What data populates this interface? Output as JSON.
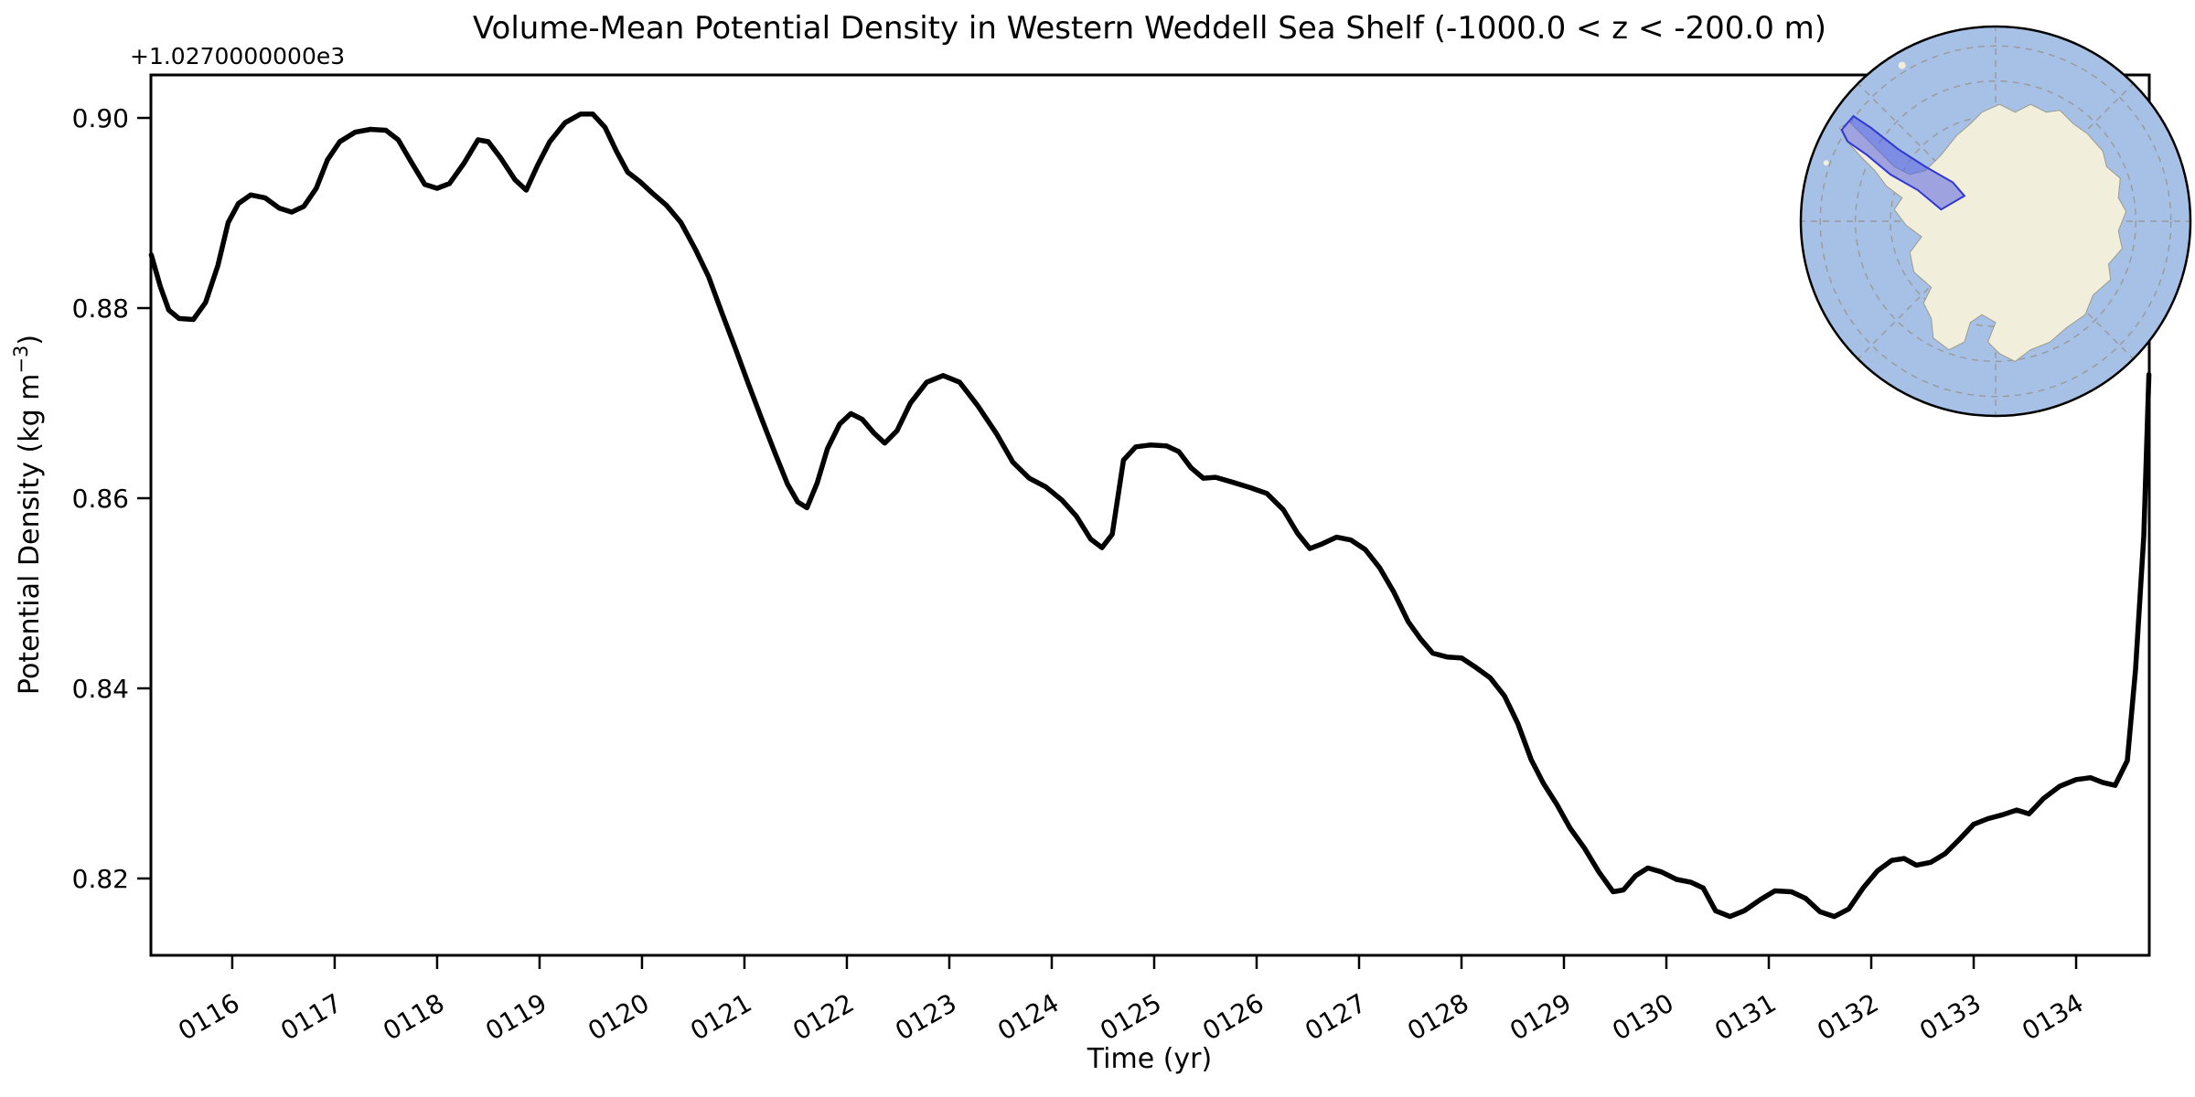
{
  "chart_data": {
    "type": "line",
    "title": "Volume-Mean Potential Density in Western Weddell Sea Shelf (-1000.0 < z < -200.0 m)",
    "xlabel": "Time (yr)",
    "ylabel_prefix": "Potential Density (kg m",
    "ylabel_sup": "−3",
    "ylabel_suffix": ")",
    "offset_text": "+1.0270000000e3",
    "x_ticks": [
      {
        "value": 116,
        "label": "0116"
      },
      {
        "value": 117,
        "label": "0117"
      },
      {
        "value": 118,
        "label": "0118"
      },
      {
        "value": 119,
        "label": "0119"
      },
      {
        "value": 120,
        "label": "0120"
      },
      {
        "value": 121,
        "label": "0121"
      },
      {
        "value": 122,
        "label": "0122"
      },
      {
        "value": 123,
        "label": "0123"
      },
      {
        "value": 124,
        "label": "0124"
      },
      {
        "value": 125,
        "label": "0125"
      },
      {
        "value": 126,
        "label": "0126"
      },
      {
        "value": 127,
        "label": "0127"
      },
      {
        "value": 128,
        "label": "0128"
      },
      {
        "value": 129,
        "label": "0129"
      },
      {
        "value": 130,
        "label": "0130"
      },
      {
        "value": 131,
        "label": "0131"
      },
      {
        "value": 132,
        "label": "0132"
      },
      {
        "value": 133,
        "label": "0133"
      },
      {
        "value": 134,
        "label": "0134"
      }
    ],
    "y_ticks": [
      {
        "value": 0.82,
        "label": "0.82"
      },
      {
        "value": 0.84,
        "label": "0.84"
      },
      {
        "value": 0.86,
        "label": "0.86"
      },
      {
        "value": 0.88,
        "label": "0.88"
      },
      {
        "value": 0.9,
        "label": "0.90"
      }
    ],
    "xlim": [
      115.206,
      134.714
    ],
    "ylim": [
      0.81192,
      0.90452
    ],
    "y_offset": 1027.0,
    "grid": false,
    "line_color": "#000000",
    "line_width": 5.5,
    "series": [
      {
        "name": "volume_mean_potential_density",
        "points": [
          [
            115.21,
            0.8856
          ],
          [
            115.3,
            0.8822
          ],
          [
            115.38,
            0.8798
          ],
          [
            115.48,
            0.8789
          ],
          [
            115.62,
            0.8788
          ],
          [
            115.74,
            0.8806
          ],
          [
            115.86,
            0.8845
          ],
          [
            115.96,
            0.889
          ],
          [
            116.06,
            0.891
          ],
          [
            116.18,
            0.8919
          ],
          [
            116.32,
            0.8916
          ],
          [
            116.46,
            0.8905
          ],
          [
            116.58,
            0.8901
          ],
          [
            116.7,
            0.8907
          ],
          [
            116.82,
            0.8926
          ],
          [
            116.93,
            0.8956
          ],
          [
            117.05,
            0.8975
          ],
          [
            117.2,
            0.8985
          ],
          [
            117.35,
            0.8988
          ],
          [
            117.5,
            0.8987
          ],
          [
            117.62,
            0.8977
          ],
          [
            117.74,
            0.8955
          ],
          [
            117.88,
            0.893
          ],
          [
            118.0,
            0.8926
          ],
          [
            118.12,
            0.8931
          ],
          [
            118.26,
            0.8952
          ],
          [
            118.4,
            0.8977
          ],
          [
            118.5,
            0.8975
          ],
          [
            118.62,
            0.8958
          ],
          [
            118.76,
            0.8935
          ],
          [
            118.87,
            0.8924
          ],
          [
            118.98,
            0.895
          ],
          [
            119.1,
            0.8975
          ],
          [
            119.25,
            0.8995
          ],
          [
            119.4,
            0.9004
          ],
          [
            119.52,
            0.9004
          ],
          [
            119.64,
            0.899
          ],
          [
            119.75,
            0.8965
          ],
          [
            119.86,
            0.8943
          ],
          [
            119.98,
            0.8933
          ],
          [
            120.1,
            0.8921
          ],
          [
            120.24,
            0.8908
          ],
          [
            120.38,
            0.889
          ],
          [
            120.52,
            0.8862
          ],
          [
            120.65,
            0.8833
          ],
          [
            120.78,
            0.8795
          ],
          [
            120.91,
            0.8758
          ],
          [
            121.04,
            0.872
          ],
          [
            121.17,
            0.8683
          ],
          [
            121.3,
            0.8647
          ],
          [
            121.42,
            0.8615
          ],
          [
            121.52,
            0.8596
          ],
          [
            121.61,
            0.859
          ],
          [
            121.71,
            0.8616
          ],
          [
            121.81,
            0.8652
          ],
          [
            121.93,
            0.8678
          ],
          [
            122.04,
            0.8689
          ],
          [
            122.15,
            0.8683
          ],
          [
            122.26,
            0.8669
          ],
          [
            122.37,
            0.8658
          ],
          [
            122.49,
            0.8671
          ],
          [
            122.62,
            0.87
          ],
          [
            122.78,
            0.8722
          ],
          [
            122.94,
            0.8729
          ],
          [
            123.1,
            0.8722
          ],
          [
            123.28,
            0.8697
          ],
          [
            123.46,
            0.8668
          ],
          [
            123.62,
            0.8638
          ],
          [
            123.78,
            0.8621
          ],
          [
            123.94,
            0.8612
          ],
          [
            124.1,
            0.8598
          ],
          [
            124.24,
            0.8581
          ],
          [
            124.38,
            0.8557
          ],
          [
            124.49,
            0.8548
          ],
          [
            124.59,
            0.8562
          ],
          [
            124.7,
            0.864
          ],
          [
            124.82,
            0.8654
          ],
          [
            124.96,
            0.8656
          ],
          [
            125.12,
            0.8655
          ],
          [
            125.24,
            0.8649
          ],
          [
            125.36,
            0.8632
          ],
          [
            125.48,
            0.8621
          ],
          [
            125.6,
            0.8622
          ],
          [
            125.76,
            0.8617
          ],
          [
            125.94,
            0.8611
          ],
          [
            126.1,
            0.8605
          ],
          [
            126.26,
            0.8588
          ],
          [
            126.4,
            0.8563
          ],
          [
            126.52,
            0.8547
          ],
          [
            126.64,
            0.8552
          ],
          [
            126.78,
            0.8559
          ],
          [
            126.92,
            0.8556
          ],
          [
            127.06,
            0.8546
          ],
          [
            127.2,
            0.8527
          ],
          [
            127.34,
            0.8501
          ],
          [
            127.48,
            0.847
          ],
          [
            127.6,
            0.8452
          ],
          [
            127.72,
            0.8437
          ],
          [
            127.86,
            0.8433
          ],
          [
            128.0,
            0.8432
          ],
          [
            128.14,
            0.8422
          ],
          [
            128.28,
            0.8411
          ],
          [
            128.42,
            0.8392
          ],
          [
            128.55,
            0.8363
          ],
          [
            128.68,
            0.8325
          ],
          [
            128.8,
            0.83
          ],
          [
            128.93,
            0.8278
          ],
          [
            129.06,
            0.8253
          ],
          [
            129.2,
            0.8232
          ],
          [
            129.34,
            0.8207
          ],
          [
            129.48,
            0.8186
          ],
          [
            129.58,
            0.8188
          ],
          [
            129.7,
            0.8203
          ],
          [
            129.82,
            0.8211
          ],
          [
            129.95,
            0.8207
          ],
          [
            130.1,
            0.8199
          ],
          [
            130.24,
            0.8196
          ],
          [
            130.36,
            0.819
          ],
          [
            130.48,
            0.8166
          ],
          [
            130.62,
            0.816
          ],
          [
            130.76,
            0.8166
          ],
          [
            130.92,
            0.8178
          ],
          [
            131.06,
            0.8187
          ],
          [
            131.22,
            0.8186
          ],
          [
            131.36,
            0.8179
          ],
          [
            131.5,
            0.8165
          ],
          [
            131.64,
            0.816
          ],
          [
            131.78,
            0.8168
          ],
          [
            131.92,
            0.819
          ],
          [
            132.06,
            0.8208
          ],
          [
            132.2,
            0.8219
          ],
          [
            132.32,
            0.8221
          ],
          [
            132.44,
            0.8214
          ],
          [
            132.58,
            0.8217
          ],
          [
            132.72,
            0.8226
          ],
          [
            132.86,
            0.8241
          ],
          [
            133.0,
            0.8257
          ],
          [
            133.14,
            0.8263
          ],
          [
            133.28,
            0.8267
          ],
          [
            133.42,
            0.8272
          ],
          [
            133.54,
            0.8268
          ],
          [
            133.68,
            0.8284
          ],
          [
            133.84,
            0.8297
          ],
          [
            134.0,
            0.8304
          ],
          [
            134.14,
            0.8306
          ],
          [
            134.26,
            0.8301
          ],
          [
            134.38,
            0.8298
          ],
          [
            134.5,
            0.8324
          ],
          [
            134.58,
            0.842
          ],
          [
            134.66,
            0.856
          ],
          [
            134.71,
            0.873
          ]
        ]
      }
    ]
  },
  "inset_map": {
    "name": "Antarctica locator with Western Weddell Sea Shelf region highlighted",
    "colors": {
      "ocean": "#a7c1e6",
      "land": "#f1efdb",
      "coast": "#9a9a8f",
      "graticule": "#999999",
      "rim": "#000000",
      "highlight_fill": "#5a62e0",
      "highlight_edge": "#3137d6",
      "highlight_opacity": "0.55"
    }
  }
}
